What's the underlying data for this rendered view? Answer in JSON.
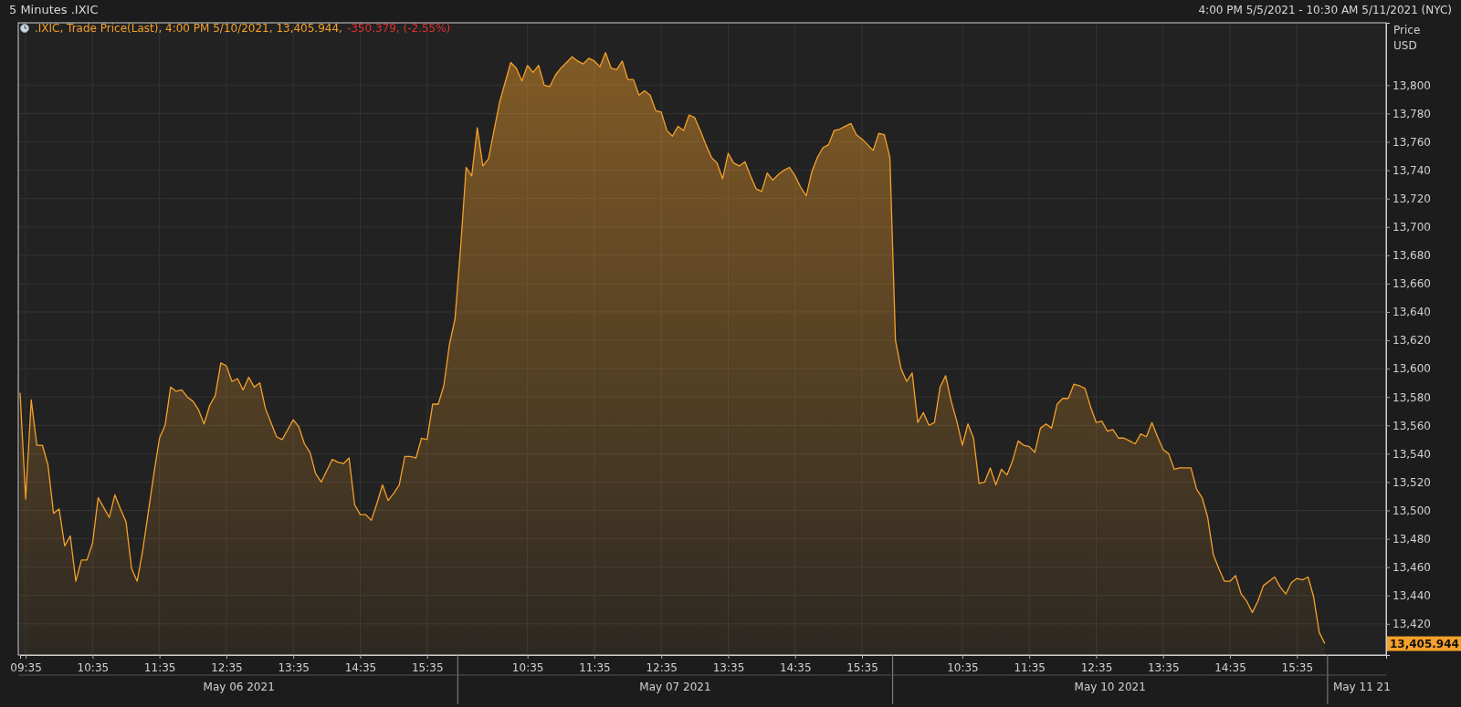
{
  "chart_data": {
    "type": "area",
    "title": "5 Minutes .IXIC",
    "subtitle": "4:00 PM 5/5/2021 - 10:30 AM 5/11/2021 (NYC)",
    "ylabel": "Price USD",
    "categories": [
      null,
      "09:35",
      null,
      null,
      null,
      null,
      null,
      null,
      null,
      null,
      null,
      null,
      null,
      "10:35",
      null,
      null,
      null,
      null,
      null,
      null,
      null,
      null,
      null,
      null,
      null,
      "11:35",
      null,
      null,
      null,
      null,
      null,
      null,
      null,
      null,
      null,
      null,
      null,
      "12:35",
      null,
      null,
      null,
      null,
      null,
      null,
      null,
      null,
      null,
      null,
      null,
      "13:35",
      null,
      null,
      null,
      null,
      null,
      null,
      null,
      null,
      null,
      null,
      null,
      "14:35",
      null,
      null,
      null,
      null,
      null,
      null,
      null,
      null,
      null,
      null,
      null,
      "15:35",
      null,
      null,
      null,
      null,
      null,
      null,
      null,
      null,
      null,
      null,
      null,
      null,
      null,
      null,
      null,
      null,
      null,
      "10:35",
      null,
      null,
      null,
      null,
      null,
      null,
      null,
      null,
      null,
      null,
      null,
      "11:35",
      null,
      null,
      null,
      null,
      null,
      null,
      null,
      null,
      null,
      null,
      null,
      "12:35",
      null,
      null,
      null,
      null,
      null,
      null,
      null,
      null,
      null,
      null,
      null,
      "13:35",
      null,
      null,
      null,
      null,
      null,
      null,
      null,
      null,
      null,
      null,
      null,
      "14:35",
      null,
      null,
      null,
      null,
      null,
      null,
      null,
      null,
      null,
      null,
      null,
      "15:35",
      null,
      null,
      null,
      null,
      null,
      null,
      null,
      null,
      null,
      null,
      null,
      null,
      null,
      null,
      null,
      null,
      null,
      "10:35",
      null,
      null,
      null,
      null,
      null,
      null,
      null,
      null,
      null,
      null,
      null,
      "11:35",
      null,
      null,
      null,
      null,
      null,
      null,
      null,
      null,
      null,
      null,
      null,
      "12:35",
      null,
      null,
      null,
      null,
      null,
      null,
      null,
      null,
      null,
      null,
      null,
      "13:35",
      null,
      null,
      null,
      null,
      null,
      null,
      null,
      null,
      null,
      null,
      null,
      "14:35",
      null,
      null,
      null,
      null,
      null,
      null,
      null,
      null,
      null,
      null,
      null,
      "15:35",
      null,
      null,
      null,
      null,
      null,
      null,
      null,
      null,
      null,
      null,
      null,
      null,
      null,
      null,
      null,
      null
    ],
    "series": [
      {
        "name": ".IXIC, Trade Price(Last), 4:00 PM 5/10/2021, 13,405.944,",
        "color": "#f5a02a",
        "values": [
          13583,
          13508,
          13578,
          13546,
          13546,
          13532,
          13498,
          13501,
          13475,
          13482,
          13450,
          13465,
          13465,
          13477,
          13509,
          13502,
          13495,
          13511,
          13501,
          13492,
          13459,
          13450,
          13472,
          13499,
          13526,
          13551,
          13560,
          13587,
          13584,
          13585,
          13580,
          13577,
          13571,
          13561,
          13574,
          13581,
          13604,
          13602,
          13591,
          13593,
          13585,
          13594,
          13587,
          13590,
          13572,
          13562,
          13552,
          13550,
          13557,
          13564,
          13559,
          13547,
          13541,
          13526,
          13520,
          13528,
          13536,
          13534,
          13533,
          13537,
          13504,
          13497,
          13497,
          13493,
          13505,
          13518,
          13507,
          13512,
          13518,
          13538,
          13538,
          13537,
          13551,
          13550,
          13575,
          13575,
          13588,
          13617,
          13635,
          13685,
          13742,
          13736,
          13770,
          13743,
          13748,
          13768,
          13788,
          13802,
          13816,
          13812,
          13803,
          13814,
          13809,
          13814,
          13800,
          13799,
          13807,
          13812,
          13816,
          13820,
          13817,
          13815,
          13819,
          13817,
          13813,
          13823,
          13812,
          13811,
          13817,
          13804,
          13804,
          13793,
          13796,
          13793,
          13782,
          13781,
          13768,
          13764,
          13771,
          13768,
          13779,
          13777,
          13768,
          13758,
          13749,
          13745,
          13734,
          13752,
          13745,
          13743,
          13746,
          13736,
          13727,
          13725,
          13738,
          13733,
          13737,
          13740,
          13742,
          13736,
          13728,
          13722,
          13739,
          13749,
          13756,
          13758,
          13768,
          13769,
          13771,
          13773,
          13765,
          13762,
          13758,
          13754,
          13766,
          13765,
          13749,
          13620,
          13600,
          13591,
          13597,
          13562,
          13569,
          13560,
          13562,
          13587,
          13595,
          13577,
          13563,
          13546,
          13561,
          13551,
          13519,
          13520,
          13530,
          13518,
          13529,
          13525,
          13535,
          13549,
          13546,
          13545,
          13541,
          13558,
          13561,
          13558,
          13575,
          13579,
          13579,
          13589,
          13588,
          13586,
          13573,
          13562,
          13563,
          13556,
          13557,
          13551,
          13551,
          13549,
          13547,
          13554,
          13552,
          13562,
          13552,
          13543,
          13540,
          13529,
          13530,
          13530,
          13530,
          13515,
          13509,
          13495,
          13469,
          13459,
          13450,
          13450,
          13454,
          13441,
          13436,
          13428,
          13436,
          13447,
          13450,
          13453,
          13446,
          13441,
          13449,
          13452,
          13451,
          13453,
          13439,
          13414,
          13406,
          null,
          null,
          null,
          null,
          null,
          null,
          null,
          null,
          null,
          null,
          null
        ]
      }
    ],
    "ylim": [
      13398,
      13844
    ],
    "yticks": [
      {
        "value": 13420,
        "label": "13,420"
      },
      {
        "value": 13440,
        "label": "13,440"
      },
      {
        "value": 13460,
        "label": "13,460"
      },
      {
        "value": 13480,
        "label": "13,480"
      },
      {
        "value": 13500,
        "label": "13,500"
      },
      {
        "value": 13520,
        "label": "13,520"
      },
      {
        "value": 13540,
        "label": "13,540"
      },
      {
        "value": 13560,
        "label": "13,560"
      },
      {
        "value": 13580,
        "label": "13,580"
      },
      {
        "value": 13600,
        "label": "13,600"
      },
      {
        "value": 13620,
        "label": "13,620"
      },
      {
        "value": 13640,
        "label": "13,640"
      },
      {
        "value": 13660,
        "label": "13,660"
      },
      {
        "value": 13680,
        "label": "13,680"
      },
      {
        "value": 13700,
        "label": "13,700"
      },
      {
        "value": 13720,
        "label": "13,720"
      },
      {
        "value": 13740,
        "label": "13,740"
      },
      {
        "value": 13760,
        "label": "13,760"
      },
      {
        "value": 13780,
        "label": "13,780"
      },
      {
        "value": 13800,
        "label": "13,800"
      }
    ],
    "grid": true,
    "legend": "top left",
    "annotations": [
      "-350.379, (-2.55%)",
      "13,405.944",
      "May 06 2021",
      "May 07 2021",
      "May 10 2021",
      "May 11 21"
    ]
  }
}
